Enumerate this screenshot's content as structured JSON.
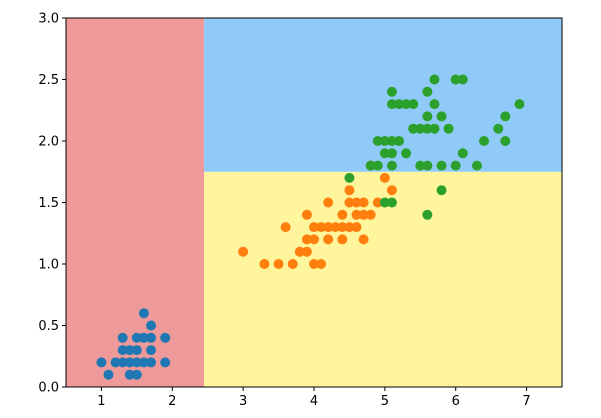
{
  "chart_data": {
    "type": "scatter",
    "xlim": [
      0.5,
      7.5
    ],
    "ylim": [
      0.0,
      3.0
    ],
    "x_ticks": [
      1,
      2,
      3,
      4,
      5,
      6,
      7
    ],
    "x_tick_labels": [
      "1",
      "2",
      "3",
      "4",
      "5",
      "6",
      "7"
    ],
    "y_ticks": [
      0.0,
      0.5,
      1.0,
      1.5,
      2.0,
      2.5,
      3.0
    ],
    "y_tick_labels": [
      "0.0",
      "0.5",
      "1.0",
      "1.5",
      "2.0",
      "2.5",
      "3.0"
    ],
    "grid": false,
    "decision_regions": [
      {
        "x_range": [
          0.5,
          2.45
        ],
        "y_range": [
          0.0,
          3.0
        ],
        "color": "#EF9A9A"
      },
      {
        "x_range": [
          2.45,
          7.5
        ],
        "y_range": [
          0.0,
          1.75
        ],
        "color": "#FFF59D"
      },
      {
        "x_range": [
          2.45,
          7.5
        ],
        "y_range": [
          1.75,
          3.0
        ],
        "color": "#90CAF9"
      }
    ],
    "series": [
      {
        "color": "#1f77b4",
        "points": [
          [
            1.0,
            0.2
          ],
          [
            1.1,
            0.1
          ],
          [
            1.2,
            0.2
          ],
          [
            1.3,
            0.2
          ],
          [
            1.3,
            0.3
          ],
          [
            1.3,
            0.4
          ],
          [
            1.4,
            0.1
          ],
          [
            1.4,
            0.2
          ],
          [
            1.4,
            0.3
          ],
          [
            1.5,
            0.1
          ],
          [
            1.5,
            0.2
          ],
          [
            1.5,
            0.3
          ],
          [
            1.5,
            0.4
          ],
          [
            1.6,
            0.2
          ],
          [
            1.6,
            0.4
          ],
          [
            1.6,
            0.6
          ],
          [
            1.7,
            0.2
          ],
          [
            1.7,
            0.3
          ],
          [
            1.7,
            0.4
          ],
          [
            1.7,
            0.5
          ],
          [
            1.9,
            0.2
          ],
          [
            1.9,
            0.4
          ]
        ]
      },
      {
        "color": "#ff7f0e",
        "points": [
          [
            3.0,
            1.1
          ],
          [
            3.3,
            1.0
          ],
          [
            3.5,
            1.0
          ],
          [
            3.6,
            1.3
          ],
          [
            3.7,
            1.0
          ],
          [
            3.8,
            1.1
          ],
          [
            3.9,
            1.1
          ],
          [
            3.9,
            1.2
          ],
          [
            3.9,
            1.4
          ],
          [
            4.0,
            1.0
          ],
          [
            4.0,
            1.2
          ],
          [
            4.0,
            1.3
          ],
          [
            4.1,
            1.0
          ],
          [
            4.1,
            1.3
          ],
          [
            4.2,
            1.2
          ],
          [
            4.2,
            1.3
          ],
          [
            4.2,
            1.5
          ],
          [
            4.3,
            1.3
          ],
          [
            4.4,
            1.2
          ],
          [
            4.4,
            1.3
          ],
          [
            4.4,
            1.4
          ],
          [
            4.5,
            1.3
          ],
          [
            4.5,
            1.5
          ],
          [
            4.5,
            1.6
          ],
          [
            4.6,
            1.3
          ],
          [
            4.6,
            1.4
          ],
          [
            4.6,
            1.5
          ],
          [
            4.7,
            1.2
          ],
          [
            4.7,
            1.4
          ],
          [
            4.7,
            1.5
          ],
          [
            4.8,
            1.4
          ],
          [
            4.8,
            1.8
          ],
          [
            4.9,
            1.5
          ],
          [
            5.0,
            1.7
          ],
          [
            5.1,
            1.6
          ]
        ]
      },
      {
        "color": "#2ca02c",
        "points": [
          [
            4.5,
            1.7
          ],
          [
            4.8,
            1.8
          ],
          [
            4.9,
            1.8
          ],
          [
            4.9,
            2.0
          ],
          [
            5.0,
            1.5
          ],
          [
            5.0,
            1.9
          ],
          [
            5.0,
            2.0
          ],
          [
            5.1,
            1.5
          ],
          [
            5.1,
            1.8
          ],
          [
            5.1,
            1.9
          ],
          [
            5.1,
            2.0
          ],
          [
            5.1,
            2.3
          ],
          [
            5.1,
            2.4
          ],
          [
            5.2,
            2.0
          ],
          [
            5.2,
            2.3
          ],
          [
            5.3,
            1.9
          ],
          [
            5.3,
            2.3
          ],
          [
            5.4,
            2.1
          ],
          [
            5.4,
            2.3
          ],
          [
            5.5,
            1.8
          ],
          [
            5.5,
            2.1
          ],
          [
            5.6,
            1.4
          ],
          [
            5.6,
            1.8
          ],
          [
            5.6,
            2.1
          ],
          [
            5.6,
            2.2
          ],
          [
            5.6,
            2.4
          ],
          [
            5.7,
            2.1
          ],
          [
            5.7,
            2.3
          ],
          [
            5.7,
            2.5
          ],
          [
            5.8,
            1.6
          ],
          [
            5.8,
            1.8
          ],
          [
            5.8,
            2.2
          ],
          [
            5.9,
            2.1
          ],
          [
            6.0,
            1.8
          ],
          [
            6.0,
            2.5
          ],
          [
            6.1,
            1.9
          ],
          [
            6.1,
            2.5
          ],
          [
            6.3,
            1.8
          ],
          [
            6.4,
            2.0
          ],
          [
            6.6,
            2.1
          ],
          [
            6.7,
            2.0
          ],
          [
            6.7,
            2.2
          ],
          [
            6.9,
            2.3
          ]
        ]
      }
    ]
  }
}
